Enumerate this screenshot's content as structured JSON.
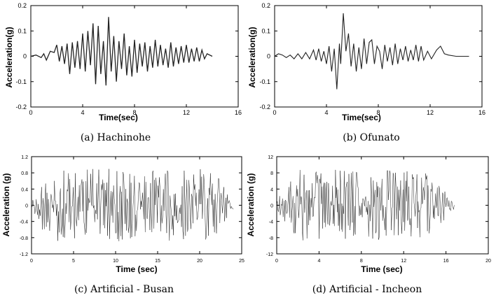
{
  "chart_data": [
    {
      "type": "line",
      "caption": "(a) Hachinohe",
      "xlabel": "Time(sec)",
      "ylabel": "Acceleration(g)",
      "xlim": [
        0,
        16
      ],
      "ylim": [
        -0.2,
        0.2
      ],
      "x_ticks": [
        "0",
        "4",
        "8",
        "12",
        "16"
      ],
      "y_ticks": [
        "-0.2",
        "-0.1",
        "0",
        "0.1",
        "0.2"
      ],
      "duration": 14.0,
      "series": [
        {
          "values": [
            [
              0,
              0
            ],
            [
              0.4,
              0.005
            ],
            [
              0.8,
              -0.005
            ],
            [
              1.0,
              0.01
            ],
            [
              1.2,
              -0.015
            ],
            [
              1.5,
              0.02
            ],
            [
              1.8,
              0.015
            ],
            [
              2.0,
              0.045
            ],
            [
              2.2,
              -0.02
            ],
            [
              2.4,
              0.04
            ],
            [
              2.6,
              -0.03
            ],
            [
              2.8,
              0.05
            ],
            [
              3.0,
              -0.07
            ],
            [
              3.2,
              0.055
            ],
            [
              3.4,
              -0.045
            ],
            [
              3.6,
              0.06
            ],
            [
              3.8,
              -0.05
            ],
            [
              4.0,
              0.09
            ],
            [
              4.2,
              -0.06
            ],
            [
              4.4,
              0.1
            ],
            [
              4.6,
              -0.035
            ],
            [
              4.8,
              0.13
            ],
            [
              5.0,
              -0.11
            ],
            [
              5.2,
              0.12
            ],
            [
              5.4,
              -0.07
            ],
            [
              5.6,
              0.06
            ],
            [
              5.8,
              -0.115
            ],
            [
              6.0,
              0.155
            ],
            [
              6.2,
              -0.06
            ],
            [
              6.4,
              0.08
            ],
            [
              6.6,
              -0.1
            ],
            [
              6.8,
              0.06
            ],
            [
              7.0,
              -0.05
            ],
            [
              7.2,
              0.09
            ],
            [
              7.4,
              -0.075
            ],
            [
              7.6,
              0.04
            ],
            [
              7.8,
              -0.08
            ],
            [
              8.0,
              0.065
            ],
            [
              8.2,
              -0.065
            ],
            [
              8.4,
              0.05
            ],
            [
              8.6,
              -0.04
            ],
            [
              8.8,
              0.055
            ],
            [
              9.0,
              -0.06
            ],
            [
              9.2,
              0.04
            ],
            [
              9.4,
              -0.045
            ],
            [
              9.6,
              0.065
            ],
            [
              9.8,
              -0.04
            ],
            [
              10.0,
              0.045
            ],
            [
              10.2,
              -0.035
            ],
            [
              10.4,
              0.03
            ],
            [
              10.6,
              -0.045
            ],
            [
              10.8,
              0.055
            ],
            [
              11.0,
              -0.04
            ],
            [
              11.2,
              0.035
            ],
            [
              11.4,
              -0.03
            ],
            [
              11.6,
              0.04
            ],
            [
              11.8,
              -0.025
            ],
            [
              12.0,
              0.045
            ],
            [
              12.2,
              -0.025
            ],
            [
              12.4,
              0.03
            ],
            [
              12.6,
              -0.02
            ],
            [
              12.8,
              0.035
            ],
            [
              13.0,
              -0.02
            ],
            [
              13.2,
              0.025
            ],
            [
              13.4,
              -0.01
            ],
            [
              13.6,
              0.01
            ],
            [
              14.0,
              0
            ]
          ]
        }
      ]
    },
    {
      "type": "line",
      "caption": "(b) Ofunato",
      "xlabel": "Time(sec)",
      "ylabel": "Acceleration(g)",
      "xlim": [
        0,
        16
      ],
      "ylim": [
        -0.2,
        0.2
      ],
      "x_ticks": [
        "0",
        "4",
        "8",
        "12",
        "16"
      ],
      "y_ticks": [
        "-0.2",
        "-0.1",
        "0",
        "0.1",
        "0.2"
      ],
      "duration": 15.0,
      "series": [
        {
          "values": [
            [
              0,
              0
            ],
            [
              0.3,
              0.01
            ],
            [
              0.6,
              0.005
            ],
            [
              0.9,
              -0.005
            ],
            [
              1.2,
              0.005
            ],
            [
              1.5,
              -0.01
            ],
            [
              1.8,
              0.01
            ],
            [
              2.1,
              -0.01
            ],
            [
              2.4,
              0.015
            ],
            [
              2.7,
              -0.01
            ],
            [
              3.0,
              0.025
            ],
            [
              3.2,
              -0.015
            ],
            [
              3.4,
              0.03
            ],
            [
              3.6,
              -0.02
            ],
            [
              3.8,
              0.02
            ],
            [
              4.0,
              -0.03
            ],
            [
              4.2,
              0.04
            ],
            [
              4.4,
              -0.06
            ],
            [
              4.6,
              0.03
            ],
            [
              4.8,
              -0.13
            ],
            [
              5.0,
              0.05
            ],
            [
              5.1,
              -0.03
            ],
            [
              5.3,
              0.17
            ],
            [
              5.5,
              0.02
            ],
            [
              5.7,
              0.09
            ],
            [
              5.9,
              -0.04
            ],
            [
              6.1,
              0.05
            ],
            [
              6.3,
              -0.06
            ],
            [
              6.5,
              0.035
            ],
            [
              6.7,
              -0.05
            ],
            [
              6.9,
              0.07
            ],
            [
              7.1,
              -0.03
            ],
            [
              7.3,
              0.055
            ],
            [
              7.5,
              0.065
            ],
            [
              7.7,
              -0.03
            ],
            [
              7.9,
              0.04
            ],
            [
              8.1,
              0.02
            ],
            [
              8.3,
              -0.05
            ],
            [
              8.5,
              0.045
            ],
            [
              8.7,
              -0.02
            ],
            [
              8.9,
              0.035
            ],
            [
              9.1,
              -0.035
            ],
            [
              9.3,
              0.05
            ],
            [
              9.5,
              -0.03
            ],
            [
              9.7,
              0.03
            ],
            [
              9.9,
              -0.015
            ],
            [
              10.1,
              0.04
            ],
            [
              10.3,
              -0.02
            ],
            [
              10.5,
              0.025
            ],
            [
              10.7,
              -0.015
            ],
            [
              10.9,
              0.045
            ],
            [
              11.1,
              -0.02
            ],
            [
              11.3,
              0.04
            ],
            [
              11.5,
              -0.015
            ],
            [
              11.8,
              0.02
            ],
            [
              12.1,
              -0.01
            ],
            [
              12.5,
              0.025
            ],
            [
              12.8,
              0.04
            ],
            [
              13.1,
              0.01
            ],
            [
              13.4,
              0.005
            ],
            [
              14.0,
              0
            ],
            [
              15.0,
              0
            ]
          ]
        }
      ]
    },
    {
      "type": "line",
      "caption": "(c) Artificial - Busan",
      "xlabel": "Time (sec)",
      "ylabel": "Acceleration (g)",
      "xlim": [
        0,
        25
      ],
      "ylim": [
        -1.2,
        1.2
      ],
      "x_ticks": [
        "0",
        "5",
        "10",
        "15",
        "20",
        "25"
      ],
      "y_ticks": [
        "-1.2",
        "-0.8",
        "-0.4",
        "0",
        "0.4",
        "0.8",
        "1.2"
      ],
      "duration": 24.0,
      "amplitude": 0.9
    },
    {
      "type": "line",
      "caption": "(d) Artificial - Incheon",
      "xlabel": "Time (sec)",
      "ylabel": "Acceleration (g)",
      "xlim": [
        0,
        20
      ],
      "ylim": [
        -12,
        12
      ],
      "x_ticks": [
        "0",
        "4",
        "8",
        "12",
        "16",
        "20"
      ],
      "y_ticks": [
        "-12",
        "-8",
        "-4",
        "0",
        "4",
        "8",
        "12"
      ],
      "duration": 16.8,
      "amplitude": 9.0
    }
  ]
}
